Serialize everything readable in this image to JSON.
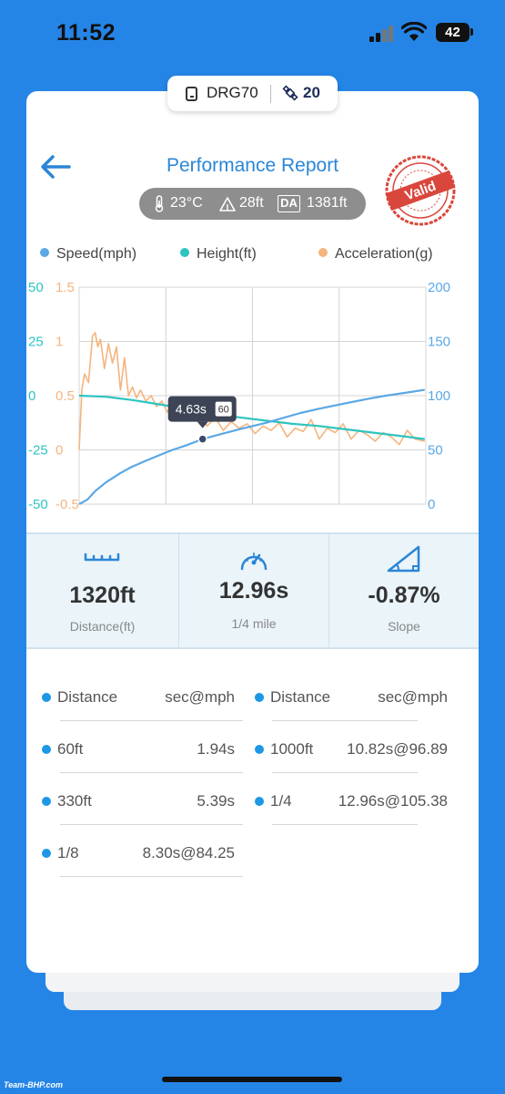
{
  "status_bar": {
    "time": "11:52",
    "battery": "42"
  },
  "device": {
    "name": "DRG70",
    "satellites": "20"
  },
  "header": {
    "title": "Performance Report",
    "stamp": "Valid"
  },
  "conditions": {
    "temperature": "23°C",
    "altitude": "28ft",
    "da_label": "DA",
    "density_altitude": "1381ft"
  },
  "legend": [
    {
      "label": "Speed(mph)",
      "color": "#5aa8e6"
    },
    {
      "label": "Height(ft)",
      "color": "#2ec4c0"
    },
    {
      "label": "Acceleration(g)",
      "color": "#f4b47e"
    }
  ],
  "chart_data": {
    "type": "line",
    "x_range_s": [
      0,
      13
    ],
    "axes": {
      "left_height": {
        "ticks": [
          "50",
          "25",
          "0",
          "-25",
          "-50"
        ],
        "range": [
          -50,
          50
        ],
        "color": "#2ec4c0"
      },
      "left_accel": {
        "ticks": [
          "1.5",
          "1",
          "0.5",
          "0",
          "-0.5"
        ],
        "range": [
          -0.5,
          1.5
        ],
        "color": "#f4b47e"
      },
      "right_speed": {
        "ticks": [
          "200",
          "150",
          "100",
          "50",
          "0"
        ],
        "range": [
          0,
          200
        ],
        "color": "#5aa8e6"
      }
    },
    "grid": true,
    "series": [
      {
        "name": "Speed(mph)",
        "axis": "right_speed",
        "color": "#5aa8e6",
        "x": [
          0,
          0.3,
          0.6,
          1.0,
          1.5,
          1.94,
          2.5,
          3.0,
          3.5,
          4.0,
          4.63,
          5.39,
          6,
          7,
          8.3,
          9,
          10,
          10.82,
          11.5,
          12.2,
          12.96
        ],
        "y": [
          0,
          4,
          12,
          20,
          28,
          34,
          40,
          45,
          50,
          54,
          60,
          65,
          69,
          75,
          84,
          88,
          93,
          97,
          100,
          102.5,
          105.4
        ]
      },
      {
        "name": "Height(ft)",
        "axis": "left_height",
        "color": "#2ec4c0",
        "x": [
          0,
          1,
          2,
          3,
          4,
          5,
          6,
          7,
          8,
          9,
          10,
          11,
          12,
          12.96
        ],
        "y": [
          0,
          -0.5,
          -2,
          -4,
          -6,
          -8,
          -10,
          -11.5,
          -13,
          -14,
          -15.5,
          -17,
          -18.5,
          -20
        ]
      },
      {
        "name": "Acceleration(g)",
        "axis": "left_accel",
        "color": "#f4b47e",
        "x": [
          0,
          0.1,
          0.2,
          0.35,
          0.5,
          0.6,
          0.7,
          0.8,
          0.95,
          1.1,
          1.25,
          1.4,
          1.55,
          1.7,
          1.85,
          2.0,
          2.15,
          2.3,
          2.5,
          2.7,
          2.9,
          3.1,
          3.3,
          3.5,
          3.7,
          3.9,
          4.1,
          4.3,
          4.5,
          4.8,
          5.1,
          5.4,
          5.7,
          6.0,
          6.3,
          6.6,
          6.9,
          7.2,
          7.5,
          7.8,
          8.1,
          8.4,
          8.7,
          9.0,
          9.3,
          9.6,
          9.9,
          10.2,
          10.5,
          10.8,
          11.1,
          11.4,
          11.7,
          12.0,
          12.3,
          12.6,
          12.96
        ],
        "y": [
          0.0,
          0.55,
          0.7,
          0.62,
          1.05,
          1.08,
          0.95,
          1.02,
          0.75,
          0.98,
          0.8,
          0.95,
          0.55,
          0.85,
          0.5,
          0.58,
          0.48,
          0.55,
          0.45,
          0.5,
          0.4,
          0.45,
          0.35,
          0.42,
          0.3,
          0.38,
          0.32,
          0.27,
          0.33,
          0.22,
          0.3,
          0.18,
          0.26,
          0.2,
          0.24,
          0.15,
          0.22,
          0.18,
          0.25,
          0.12,
          0.2,
          0.17,
          0.28,
          0.1,
          0.2,
          0.16,
          0.24,
          0.1,
          0.18,
          0.14,
          0.08,
          0.16,
          0.12,
          0.05,
          0.18,
          0.1,
          0.08
        ]
      }
    ],
    "tooltip": {
      "time": "4.63s",
      "speed": "60",
      "x": 4.63,
      "y": 60
    }
  },
  "stats": [
    {
      "value": "1320ft",
      "label": "Distance(ft)",
      "icon": "ruler-icon"
    },
    {
      "value": "12.96s",
      "label": "1/4 mile",
      "icon": "speedometer-icon"
    },
    {
      "value": "-0.87%",
      "label": "Slope",
      "icon": "slope-icon"
    }
  ],
  "results": {
    "header": {
      "left_label": "Distance",
      "left_value": "sec@mph",
      "right_label": "Distance",
      "right_value": "sec@mph"
    },
    "left": [
      {
        "label": "60ft",
        "value": "1.94s"
      },
      {
        "label": "330ft",
        "value": "5.39s"
      },
      {
        "label": "1/8",
        "value": "8.30s@84.25"
      }
    ],
    "right": [
      {
        "label": "1000ft",
        "value": "10.82s@96.89"
      },
      {
        "label": "1/4",
        "value": "12.96s@105.38"
      }
    ]
  },
  "watermark": "Team-BHP.com"
}
